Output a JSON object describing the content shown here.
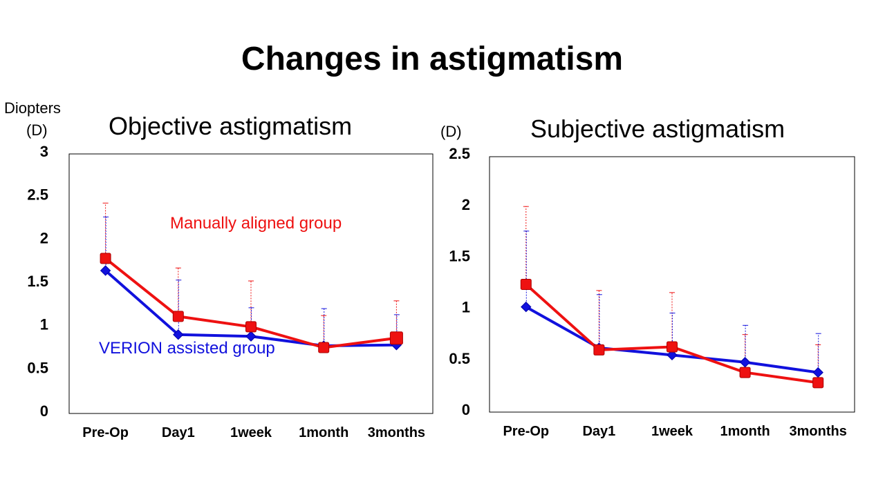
{
  "title": "Changes in astigmatism",
  "left_unit_line1": "Diopters",
  "left_unit_line2": "(D)",
  "right_unit": "(D)",
  "colors": {
    "manual": "#ee1111",
    "verion": "#1111dd",
    "axis": "#000000"
  },
  "chart_data": [
    {
      "type": "line",
      "title": "Objective astigmatism",
      "categories": [
        "Pre-Op",
        "Day1",
        "1week",
        "1month",
        "3months"
      ],
      "ylim": [
        0,
        3
      ],
      "yticks": [
        0,
        0.5,
        1,
        1.5,
        2,
        2.5,
        3
      ],
      "ytick_labels": [
        "0",
        "0.5",
        "1",
        "1.5",
        "2",
        "2.5",
        "3"
      ],
      "grid": false,
      "series": [
        {
          "name": "VERION assisted group",
          "values": [
            1.62,
            0.88,
            0.86,
            0.75,
            0.76
          ],
          "error_upper": [
            2.24,
            1.51,
            1.19,
            1.18,
            1.11
          ]
        },
        {
          "name": "Manually aligned group",
          "values": [
            1.76,
            1.09,
            0.97,
            0.73,
            0.84
          ],
          "error_upper": [
            2.4,
            1.65,
            1.5,
            1.1,
            1.27
          ]
        }
      ]
    },
    {
      "type": "line",
      "title": "Subjective astigmatism",
      "categories": [
        "Pre-Op",
        "Day1",
        "1week",
        "1month",
        "3months"
      ],
      "ylim": [
        0,
        2.5
      ],
      "yticks": [
        0,
        0.5,
        1,
        1.5,
        2,
        2.5
      ],
      "ytick_labels": [
        "0",
        "0.5",
        "1",
        "1.5",
        "2",
        "2.5"
      ],
      "grid": false,
      "series": [
        {
          "name": "VERION assisted group",
          "values": [
            1.0,
            0.6,
            0.53,
            0.46,
            0.36
          ],
          "error_upper": [
            1.74,
            1.12,
            0.94,
            0.82,
            0.74
          ]
        },
        {
          "name": "Manually aligned group",
          "values": [
            1.22,
            0.58,
            0.61,
            0.36,
            0.26
          ],
          "error_upper": [
            1.98,
            1.16,
            1.14,
            0.73,
            0.63
          ]
        }
      ]
    }
  ]
}
